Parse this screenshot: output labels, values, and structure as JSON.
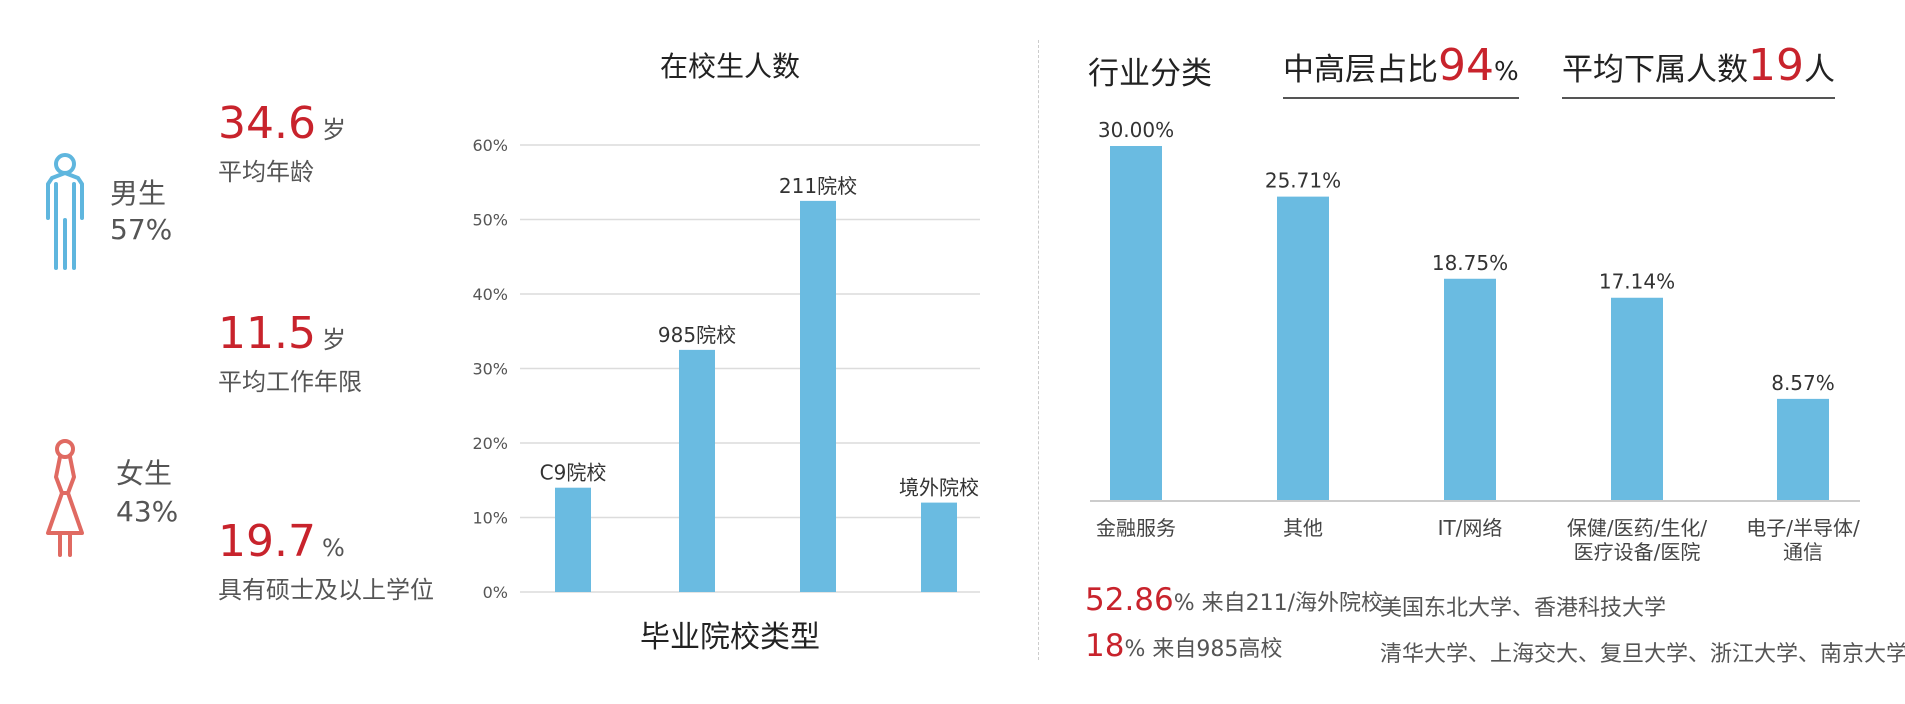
{
  "demographics": {
    "male": {
      "label": "男生",
      "percent": "57%",
      "color": "#5fb6de"
    },
    "female": {
      "label": "女生",
      "percent": "43%",
      "color": "#e06a62"
    }
  },
  "stats": [
    {
      "value": "34.6",
      "unit": "岁",
      "desc": "平均年龄"
    },
    {
      "value": "11.5",
      "unit": "岁",
      "desc": "平均工作年限"
    },
    {
      "value": "19.7",
      "unit": "%",
      "desc": "具有硕士及以上学位"
    }
  ],
  "chart_data": [
    {
      "type": "bar",
      "title": "在校生人数",
      "xlabel": "毕业院校类型",
      "ylabel": "",
      "categories": [
        "C9院校",
        "985院校",
        "211院校",
        "境外院校"
      ],
      "values": [
        14,
        32.5,
        52.5,
        12
      ],
      "ylim": [
        0,
        60
      ],
      "yticks": [
        "0%",
        "10%",
        "20%",
        "30%",
        "40%",
        "50%",
        "60%"
      ],
      "grid": true,
      "color": "#6abbe1"
    },
    {
      "type": "bar",
      "title": "行业分类",
      "categories": [
        "金融服务",
        "其他",
        "IT/网络",
        "保健/医药/生化/医疗设备/医院",
        "电子/半导体/通信"
      ],
      "category_lines": [
        [
          "金融服务"
        ],
        [
          "其他"
        ],
        [
          "IT/网络"
        ],
        [
          "保健/医药/生化/",
          "医疗设备/医院"
        ],
        [
          "电子/半导体/",
          "通信"
        ]
      ],
      "values": [
        30.0,
        25.71,
        18.75,
        17.14,
        8.57
      ],
      "value_labels": [
        "30.00%",
        "25.71%",
        "18.75%",
        "17.14%",
        "8.57%"
      ],
      "ylim": [
        0,
        30
      ],
      "grid": false,
      "color": "#6abbe1"
    }
  ],
  "headline": {
    "mid_senior_prefix": "中高层占比",
    "mid_senior_value": "94",
    "mid_senior_unit": "%",
    "subordinates_prefix": "平均下属人数",
    "subordinates_value": "19",
    "subordinates_unit": "人"
  },
  "footer": [
    {
      "value": "52.86",
      "text": "% 来自211/海外院校",
      "schools": "美国东北大学、香港科技大学"
    },
    {
      "value": "18",
      "text": "% 来自985高校",
      "schools": "清华大学、上海交大、复旦大学、浙江大学、南京大学……"
    }
  ]
}
